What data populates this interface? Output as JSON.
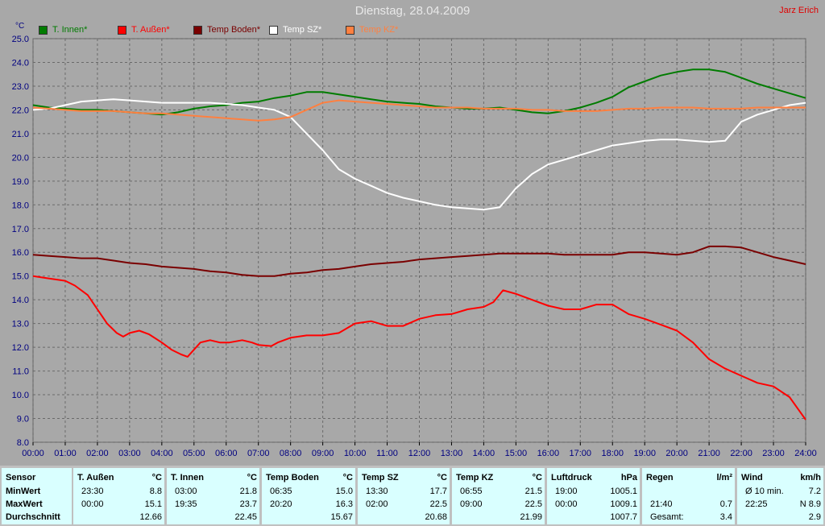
{
  "header": {
    "title": "Dienstag, 28.04.2009",
    "author": "Jarz Erich",
    "unit": "°C"
  },
  "legend": [
    {
      "label": "T. Innen*",
      "color": "#007c00"
    },
    {
      "label": "T. Außen*",
      "color": "#ff0000"
    },
    {
      "label": "Temp Boden*",
      "color": "#7a0000"
    },
    {
      "label": "Temp SZ*",
      "color": "#ffffff"
    },
    {
      "label": "Temp KZ*",
      "color": "#ff8040"
    }
  ],
  "chart_data": {
    "type": "line",
    "title": "Dienstag, 28.04.2009",
    "ylabel": "°C",
    "ylim": [
      8.0,
      25.0
    ],
    "y_ticks": [
      "8.0",
      "9.0",
      "10.0",
      "11.0",
      "12.0",
      "13.0",
      "14.0",
      "15.0",
      "16.0",
      "17.0",
      "18.0",
      "19.0",
      "20.0",
      "21.0",
      "22.0",
      "23.0",
      "24.0",
      "25.0"
    ],
    "x_ticks": [
      "00:00",
      "01:00",
      "02:00",
      "03:00",
      "04:00",
      "05:00",
      "06:00",
      "07:00",
      "08:00",
      "09:00",
      "10:00",
      "11:00",
      "12:00",
      "13:00",
      "14:00",
      "15:00",
      "16:00",
      "17:00",
      "18:00",
      "19:00",
      "20:00",
      "21:00",
      "22:00",
      "23:00",
      "24:00"
    ],
    "grid": true,
    "series": [
      {
        "name": "T. Innen*",
        "color": "#007c00",
        "points": [
          [
            0,
            22.2
          ],
          [
            0.5,
            22.1
          ],
          [
            1,
            22.05
          ],
          [
            1.5,
            22.0
          ],
          [
            2,
            22.0
          ],
          [
            2.5,
            21.95
          ],
          [
            3,
            21.9
          ],
          [
            3.5,
            21.85
          ],
          [
            4,
            21.8
          ],
          [
            4.5,
            21.9
          ],
          [
            5,
            22.05
          ],
          [
            5.5,
            22.15
          ],
          [
            6,
            22.2
          ],
          [
            6.5,
            22.3
          ],
          [
            7,
            22.35
          ],
          [
            7.5,
            22.5
          ],
          [
            8,
            22.6
          ],
          [
            8.5,
            22.75
          ],
          [
            9,
            22.75
          ],
          [
            9.5,
            22.65
          ],
          [
            10,
            22.55
          ],
          [
            10.5,
            22.45
          ],
          [
            11,
            22.35
          ],
          [
            11.5,
            22.3
          ],
          [
            12,
            22.25
          ],
          [
            12.5,
            22.15
          ],
          [
            13,
            22.1
          ],
          [
            13.5,
            22.05
          ],
          [
            14,
            22.05
          ],
          [
            14.5,
            22.1
          ],
          [
            15,
            22.0
          ],
          [
            15.5,
            21.9
          ],
          [
            16,
            21.85
          ],
          [
            16.5,
            21.95
          ],
          [
            17,
            22.1
          ],
          [
            17.5,
            22.3
          ],
          [
            18,
            22.55
          ],
          [
            18.5,
            22.95
          ],
          [
            19,
            23.2
          ],
          [
            19.5,
            23.45
          ],
          [
            20,
            23.6
          ],
          [
            20.5,
            23.7
          ],
          [
            21,
            23.7
          ],
          [
            21.5,
            23.6
          ],
          [
            22,
            23.35
          ],
          [
            22.5,
            23.1
          ],
          [
            23,
            22.9
          ],
          [
            23.5,
            22.7
          ],
          [
            24,
            22.5
          ]
        ]
      },
      {
        "name": "T. Außen*",
        "color": "#ff0000",
        "points": [
          [
            0,
            15.0
          ],
          [
            0.5,
            14.9
          ],
          [
            1,
            14.8
          ],
          [
            1.3,
            14.6
          ],
          [
            1.7,
            14.2
          ],
          [
            2,
            13.6
          ],
          [
            2.3,
            13.0
          ],
          [
            2.6,
            12.6
          ],
          [
            2.8,
            12.45
          ],
          [
            3,
            12.6
          ],
          [
            3.3,
            12.7
          ],
          [
            3.6,
            12.55
          ],
          [
            4,
            12.2
          ],
          [
            4.3,
            11.9
          ],
          [
            4.6,
            11.7
          ],
          [
            4.8,
            11.6
          ],
          [
            5,
            11.9
          ],
          [
            5.2,
            12.2
          ],
          [
            5.5,
            12.3
          ],
          [
            5.8,
            12.2
          ],
          [
            6.1,
            12.2
          ],
          [
            6.5,
            12.3
          ],
          [
            6.8,
            12.2
          ],
          [
            7,
            12.1
          ],
          [
            7.4,
            12.05
          ],
          [
            7.6,
            12.2
          ],
          [
            8,
            12.4
          ],
          [
            8.5,
            12.5
          ],
          [
            9,
            12.5
          ],
          [
            9.5,
            12.6
          ],
          [
            10,
            13.0
          ],
          [
            10.5,
            13.1
          ],
          [
            11,
            12.9
          ],
          [
            11.5,
            12.9
          ],
          [
            12,
            13.2
          ],
          [
            12.5,
            13.35
          ],
          [
            13,
            13.4
          ],
          [
            13.5,
            13.6
          ],
          [
            14,
            13.7
          ],
          [
            14.3,
            13.9
          ],
          [
            14.6,
            14.4
          ],
          [
            15,
            14.25
          ],
          [
            15.5,
            14.0
          ],
          [
            16,
            13.75
          ],
          [
            16.5,
            13.6
          ],
          [
            17,
            13.6
          ],
          [
            17.5,
            13.8
          ],
          [
            18,
            13.8
          ],
          [
            18.5,
            13.4
          ],
          [
            19,
            13.2
          ],
          [
            19.5,
            12.95
          ],
          [
            20,
            12.7
          ],
          [
            20.5,
            12.2
          ],
          [
            21,
            11.5
          ],
          [
            21.5,
            11.1
          ],
          [
            22,
            10.8
          ],
          [
            22.5,
            10.5
          ],
          [
            23,
            10.35
          ],
          [
            23.5,
            9.9
          ],
          [
            24,
            8.95
          ]
        ]
      },
      {
        "name": "Temp Boden*",
        "color": "#7a0000",
        "points": [
          [
            0,
            15.9
          ],
          [
            0.5,
            15.85
          ],
          [
            1,
            15.8
          ],
          [
            1.5,
            15.75
          ],
          [
            2,
            15.75
          ],
          [
            2.5,
            15.65
          ],
          [
            3,
            15.55
          ],
          [
            3.5,
            15.5
          ],
          [
            4,
            15.4
          ],
          [
            4.5,
            15.35
          ],
          [
            5,
            15.3
          ],
          [
            5.5,
            15.2
          ],
          [
            6,
            15.15
          ],
          [
            6.5,
            15.05
          ],
          [
            7,
            15.0
          ],
          [
            7.5,
            15.0
          ],
          [
            8,
            15.1
          ],
          [
            8.5,
            15.15
          ],
          [
            9,
            15.25
          ],
          [
            9.5,
            15.3
          ],
          [
            10,
            15.4
          ],
          [
            10.5,
            15.5
          ],
          [
            11,
            15.55
          ],
          [
            11.5,
            15.6
          ],
          [
            12,
            15.7
          ],
          [
            12.5,
            15.75
          ],
          [
            13,
            15.8
          ],
          [
            13.5,
            15.85
          ],
          [
            14,
            15.9
          ],
          [
            14.5,
            15.95
          ],
          [
            15,
            15.95
          ],
          [
            15.5,
            15.95
          ],
          [
            16,
            15.95
          ],
          [
            16.5,
            15.9
          ],
          [
            17,
            15.9
          ],
          [
            17.5,
            15.9
          ],
          [
            18,
            15.9
          ],
          [
            18.5,
            16.0
          ],
          [
            19,
            16.0
          ],
          [
            19.5,
            15.95
          ],
          [
            20,
            15.9
          ],
          [
            20.5,
            16.0
          ],
          [
            21,
            16.25
          ],
          [
            21.5,
            16.25
          ],
          [
            22,
            16.2
          ],
          [
            22.5,
            16.0
          ],
          [
            23,
            15.8
          ],
          [
            23.5,
            15.65
          ],
          [
            24,
            15.5
          ]
        ]
      },
      {
        "name": "Temp SZ*",
        "color": "#ffffff",
        "points": [
          [
            0,
            22.0
          ],
          [
            0.5,
            22.05
          ],
          [
            1,
            22.2
          ],
          [
            1.5,
            22.35
          ],
          [
            2,
            22.4
          ],
          [
            2.5,
            22.45
          ],
          [
            3,
            22.4
          ],
          [
            3.5,
            22.35
          ],
          [
            4,
            22.3
          ],
          [
            4.5,
            22.3
          ],
          [
            5,
            22.3
          ],
          [
            5.5,
            22.3
          ],
          [
            6,
            22.25
          ],
          [
            6.5,
            22.2
          ],
          [
            7,
            22.1
          ],
          [
            7.5,
            22.0
          ],
          [
            8,
            21.7
          ],
          [
            8.5,
            21.0
          ],
          [
            9,
            20.3
          ],
          [
            9.5,
            19.5
          ],
          [
            10,
            19.1
          ],
          [
            10.5,
            18.8
          ],
          [
            11,
            18.5
          ],
          [
            11.5,
            18.3
          ],
          [
            12,
            18.15
          ],
          [
            12.5,
            18.0
          ],
          [
            13,
            17.9
          ],
          [
            13.5,
            17.85
          ],
          [
            14,
            17.8
          ],
          [
            14.5,
            17.9
          ],
          [
            15,
            18.7
          ],
          [
            15.5,
            19.3
          ],
          [
            16,
            19.7
          ],
          [
            16.5,
            19.9
          ],
          [
            17,
            20.1
          ],
          [
            17.5,
            20.3
          ],
          [
            18,
            20.5
          ],
          [
            18.5,
            20.6
          ],
          [
            19,
            20.7
          ],
          [
            19.5,
            20.75
          ],
          [
            20,
            20.75
          ],
          [
            20.5,
            20.7
          ],
          [
            21,
            20.65
          ],
          [
            21.5,
            20.7
          ],
          [
            22,
            21.5
          ],
          [
            22.5,
            21.8
          ],
          [
            23,
            22.0
          ],
          [
            23.5,
            22.2
          ],
          [
            24,
            22.3
          ]
        ]
      },
      {
        "name": "Temp KZ*",
        "color": "#ff8040",
        "points": [
          [
            0,
            22.1
          ],
          [
            0.5,
            22.05
          ],
          [
            1,
            22.0
          ],
          [
            1.5,
            21.95
          ],
          [
            2,
            21.95
          ],
          [
            2.5,
            21.95
          ],
          [
            3,
            21.9
          ],
          [
            3.5,
            21.85
          ],
          [
            4,
            21.85
          ],
          [
            4.5,
            21.8
          ],
          [
            5,
            21.75
          ],
          [
            5.5,
            21.7
          ],
          [
            6,
            21.65
          ],
          [
            6.5,
            21.6
          ],
          [
            7,
            21.55
          ],
          [
            7.5,
            21.6
          ],
          [
            8,
            21.7
          ],
          [
            8.5,
            22.0
          ],
          [
            9,
            22.3
          ],
          [
            9.5,
            22.4
          ],
          [
            10,
            22.35
          ],
          [
            10.5,
            22.3
          ],
          [
            11,
            22.25
          ],
          [
            11.5,
            22.2
          ],
          [
            12,
            22.15
          ],
          [
            12.5,
            22.1
          ],
          [
            13,
            22.1
          ],
          [
            13.5,
            22.1
          ],
          [
            14,
            22.05
          ],
          [
            14.5,
            22.05
          ],
          [
            15,
            22.05
          ],
          [
            15.5,
            22.0
          ],
          [
            16,
            22.0
          ],
          [
            16.5,
            21.95
          ],
          [
            17,
            21.95
          ],
          [
            17.5,
            21.95
          ],
          [
            18,
            22.0
          ],
          [
            18.5,
            22.05
          ],
          [
            19,
            22.05
          ],
          [
            19.5,
            22.1
          ],
          [
            20,
            22.1
          ],
          [
            20.5,
            22.1
          ],
          [
            21,
            22.05
          ],
          [
            21.5,
            22.05
          ],
          [
            22,
            22.05
          ],
          [
            22.5,
            22.1
          ],
          [
            23,
            22.1
          ],
          [
            23.5,
            22.1
          ],
          [
            24,
            22.1
          ]
        ]
      }
    ]
  },
  "stats": {
    "panels": [
      {
        "title": "Sensor",
        "unit": "",
        "rows": [
          {
            "label": "MinWert"
          },
          {
            "label": "MaxWert"
          },
          {
            "label": "Durchschnitt"
          }
        ]
      },
      {
        "title": "T. Außen",
        "unit": "°C",
        "rows": [
          {
            "time": "23:30",
            "value": "8.8"
          },
          {
            "time": "00:00",
            "value": "15.1"
          },
          {
            "time": "",
            "value": "12.66"
          }
        ]
      },
      {
        "title": "T. Innen",
        "unit": "°C",
        "rows": [
          {
            "time": "03:00",
            "value": "21.8"
          },
          {
            "time": "19:35",
            "value": "23.7"
          },
          {
            "time": "",
            "value": "22.45"
          }
        ]
      },
      {
        "title": "Temp Boden",
        "unit": "°C",
        "rows": [
          {
            "time": "06:35",
            "value": "15.0"
          },
          {
            "time": "20:20",
            "value": "16.3"
          },
          {
            "time": "",
            "value": "15.67"
          }
        ]
      },
      {
        "title": "Temp SZ",
        "unit": "°C",
        "rows": [
          {
            "time": "13:30",
            "value": "17.7"
          },
          {
            "time": "02:00",
            "value": "22.5"
          },
          {
            "time": "",
            "value": "20.68"
          }
        ]
      },
      {
        "title": "Temp KZ",
        "unit": "°C",
        "rows": [
          {
            "time": "06:55",
            "value": "21.5"
          },
          {
            "time": "09:00",
            "value": "22.5"
          },
          {
            "time": "",
            "value": "21.99"
          }
        ]
      },
      {
        "title": "Luftdruck",
        "unit": "hPa",
        "rows": [
          {
            "time": "19:00",
            "value": "1005.1"
          },
          {
            "time": "00:00",
            "value": "1009.1"
          },
          {
            "time": "",
            "value": "1007.7"
          }
        ]
      },
      {
        "title": "Regen",
        "unit": "l/m²",
        "rows": [
          {
            "time": "",
            "value": ""
          },
          {
            "time": "21:40",
            "value": "0.7"
          },
          {
            "time": "Gesamt:",
            "value": "3.4"
          }
        ]
      },
      {
        "title": "Wind",
        "unit": "km/h",
        "rows": [
          {
            "time": "Ø 10 min.",
            "value": "7.2"
          },
          {
            "time": "22:25",
            "value": "N 8.9"
          },
          {
            "time": "",
            "value": "2.9"
          }
        ]
      }
    ]
  }
}
